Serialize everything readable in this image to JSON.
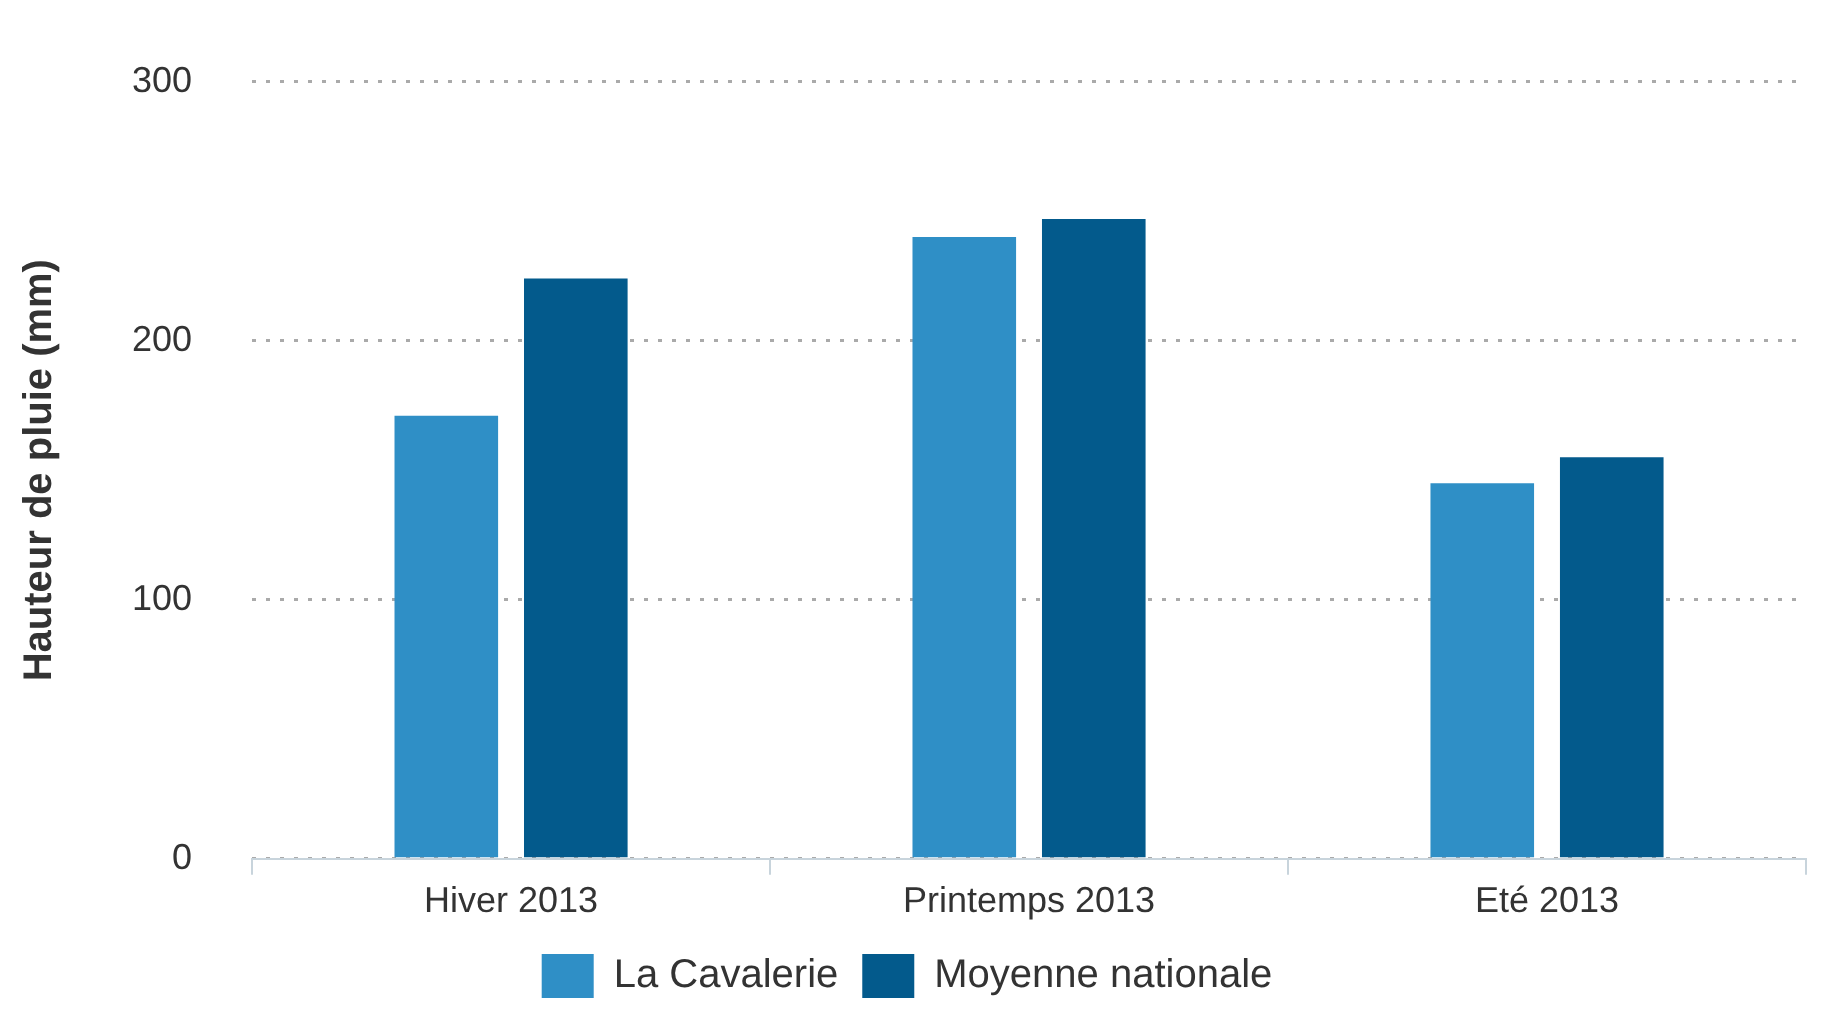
{
  "chart_data": {
    "type": "bar",
    "ylabel": "Hauteur de pluie (mm)",
    "categories": [
      "Hiver 2013",
      "Printemps 2013",
      "Eté 2013"
    ],
    "series": [
      {
        "name": "La Cavalerie",
        "color": "#2f8fc6",
        "values": [
          171,
          240,
          145
        ]
      },
      {
        "name": "Moyenne nationale",
        "color": "#035a8c",
        "values": [
          224,
          247,
          155
        ]
      }
    ],
    "ylim": [
      0,
      300
    ],
    "yticks": [
      0,
      100,
      200,
      300
    ],
    "grid": "y",
    "legend": "bottom"
  }
}
